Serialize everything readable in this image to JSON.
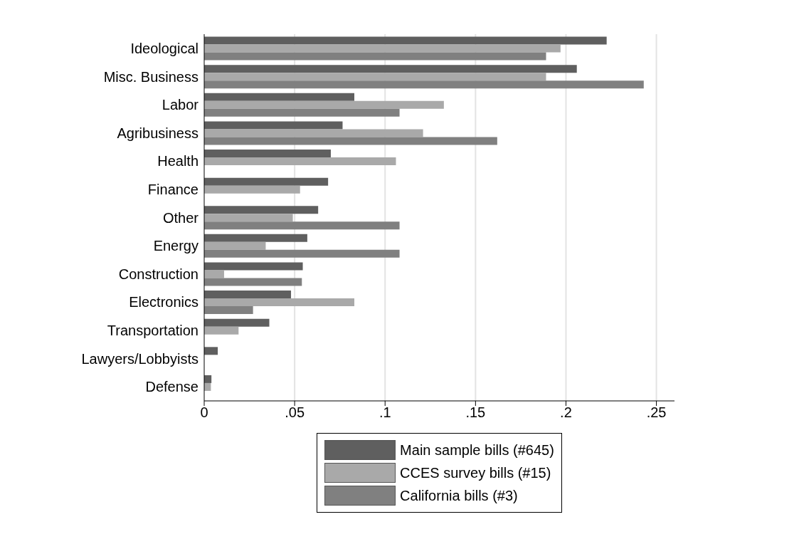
{
  "chart_data": {
    "type": "bar",
    "orientation": "horizontal",
    "categories": [
      "Ideological",
      "Misc. Business",
      "Labor",
      "Agribusiness",
      "Health",
      "Finance",
      "Other",
      "Energy",
      "Construction",
      "Electronics",
      "Transportation",
      "Lawyers/Lobbyists",
      "Defense"
    ],
    "series": [
      {
        "name": "Main sample bills (#645)",
        "color": "#5f5f5f",
        "values": [
          0.2225,
          0.206,
          0.083,
          0.0765,
          0.07,
          0.0685,
          0.063,
          0.057,
          0.0545,
          0.048,
          0.036,
          0.0075,
          0.004
        ]
      },
      {
        "name": "CCES survey bills (#15)",
        "color": "#a9a9a9",
        "values": [
          0.197,
          0.189,
          0.1325,
          0.121,
          0.106,
          0.053,
          0.049,
          0.034,
          0.011,
          0.083,
          0.019,
          null,
          0.0037
        ]
      },
      {
        "name": "California bills (#3)",
        "color": "#808080",
        "values": [
          0.189,
          0.243,
          0.108,
          0.162,
          null,
          null,
          0.108,
          0.108,
          0.054,
          0.027,
          null,
          null,
          null
        ]
      }
    ],
    "xlim": [
      0,
      0.26
    ],
    "xticks": [
      0,
      {
        "value": 0.05,
        "label": ".05"
      },
      {
        "value": 0.1,
        "label": ".1"
      },
      {
        "value": 0.15,
        "label": ".15"
      },
      {
        "value": 0.2,
        "label": ".2"
      },
      {
        "value": 0.25,
        "label": ".25"
      }
    ],
    "grid": "x",
    "legend": "bottom"
  }
}
